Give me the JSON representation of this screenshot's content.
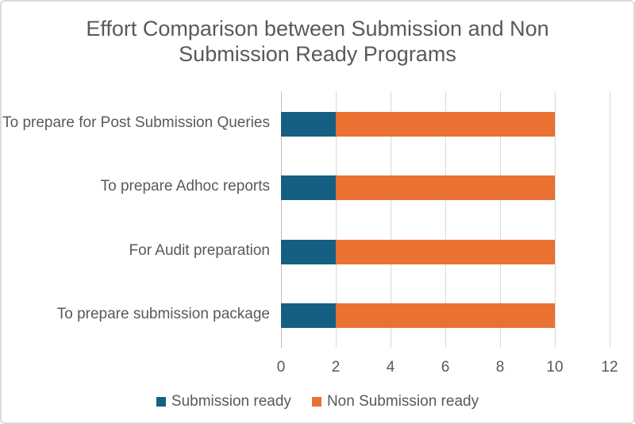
{
  "title_lines": [
    "Effort Comparison between Submission and Non",
    "Submission Ready Programs"
  ],
  "chart_data": {
    "type": "bar",
    "orientation": "horizontal",
    "stacked": true,
    "title": "Effort Comparison between Submission and Non Submission Ready Programs",
    "categories": [
      "To prepare for Post Submission Queries",
      "To prepare Adhoc reports",
      "For Audit preparation",
      "To prepare submission package"
    ],
    "series": [
      {
        "name": "Submission ready",
        "color": "#156082",
        "values": [
          2,
          2,
          2,
          2
        ]
      },
      {
        "name": "Non Submission ready",
        "color": "#E97132",
        "values": [
          8,
          8,
          8,
          8
        ]
      }
    ],
    "xlim": [
      0,
      12
    ],
    "x_ticks": [
      0,
      2,
      4,
      6,
      8,
      10,
      12
    ],
    "grid": true,
    "legend_position": "bottom",
    "colors": {
      "title_text": "#595959",
      "axis_text": "#595959",
      "gridline": "#D9D9D9",
      "axis_line": "#BFBFBF",
      "canvas_border": "#DBDBDB",
      "background": "#FFFFFF"
    }
  }
}
